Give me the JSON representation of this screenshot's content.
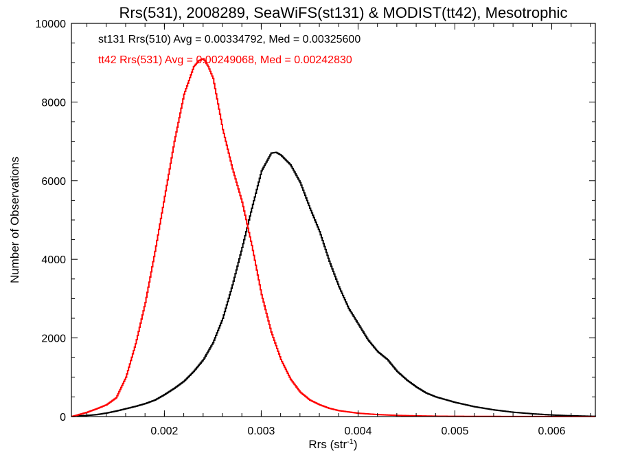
{
  "chart_data": {
    "type": "line",
    "title": "Rrs(531), 2008289, SeaWiFS(st131) & MODIST(tt42), Mesotrophic",
    "xlabel": "Rrs (str",
    "xlabel_sup": "-1",
    "xlabel_end": ")",
    "ylabel": "Number of Observations",
    "xlim": [
      0.00104,
      0.00645
    ],
    "ylim": [
      0,
      10000
    ],
    "xticks": [
      0.002,
      0.003,
      0.004,
      0.005,
      0.006
    ],
    "xtick_labels": [
      "0.002",
      "0.003",
      "0.004",
      "0.005",
      "0.006"
    ],
    "yticks": [
      0,
      2000,
      4000,
      6000,
      8000,
      10000
    ],
    "ytick_labels": [
      "0",
      "2000",
      "4000",
      "6000",
      "8000",
      "10000"
    ],
    "grid": false,
    "step": true,
    "annotations": [
      {
        "text": "st131 Rrs(510) Avg = 0.00334792, Med = 0.00325600",
        "color": "#000000"
      },
      {
        "text": "tt42 Rrs(531) Avg = 0.00249068, Med = 0.00242830",
        "color": "#ff0000"
      }
    ],
    "series": [
      {
        "color": "#000000",
        "x": [
          0.00104,
          0.0011,
          0.0012,
          0.0013,
          0.0014,
          0.0015,
          0.0016,
          0.0017,
          0.0018,
          0.0019,
          0.002,
          0.0021,
          0.0022,
          0.0023,
          0.0024,
          0.0025,
          0.0026,
          0.0027,
          0.0028,
          0.0029,
          0.003,
          0.0031,
          0.00315,
          0.0032,
          0.0033,
          0.0034,
          0.0035,
          0.0036,
          0.0037,
          0.0038,
          0.0039,
          0.004,
          0.0041,
          0.0042,
          0.0043,
          0.0044,
          0.0045,
          0.0046,
          0.0047,
          0.0048,
          0.005,
          0.0052,
          0.0054,
          0.0056,
          0.0058,
          0.006,
          0.0062,
          0.00645
        ],
        "y": [
          0,
          15,
          30,
          50,
          90,
          140,
          200,
          260,
          330,
          420,
          560,
          720,
          900,
          1150,
          1450,
          1880,
          2500,
          3350,
          4300,
          5300,
          6250,
          6700,
          6720,
          6650,
          6400,
          5950,
          5300,
          4700,
          3950,
          3300,
          2750,
          2350,
          1950,
          1650,
          1450,
          1150,
          930,
          750,
          600,
          500,
          360,
          250,
          170,
          110,
          70,
          40,
          20,
          5
        ]
      },
      {
        "color": "#ff0000",
        "x": [
          0.00104,
          0.0011,
          0.0012,
          0.0013,
          0.0014,
          0.0015,
          0.0016,
          0.0017,
          0.0018,
          0.0019,
          0.002,
          0.0021,
          0.0022,
          0.0023,
          0.00235,
          0.0024,
          0.00245,
          0.0025,
          0.0026,
          0.0027,
          0.0028,
          0.0029,
          0.003,
          0.0031,
          0.0032,
          0.0033,
          0.0034,
          0.0035,
          0.0036,
          0.0037,
          0.0038,
          0.004,
          0.0042,
          0.0044,
          0.0046,
          0.0048,
          0.005,
          0.0055,
          0.006,
          0.00645
        ],
        "y": [
          0,
          40,
          110,
          200,
          300,
          480,
          1000,
          1850,
          2900,
          4200,
          5600,
          7000,
          8200,
          8900,
          9050,
          9100,
          8900,
          8600,
          7300,
          6300,
          5450,
          4350,
          3100,
          2150,
          1450,
          950,
          620,
          420,
          300,
          210,
          150,
          85,
          50,
          30,
          18,
          10,
          6,
          3,
          1,
          0
        ]
      }
    ]
  }
}
